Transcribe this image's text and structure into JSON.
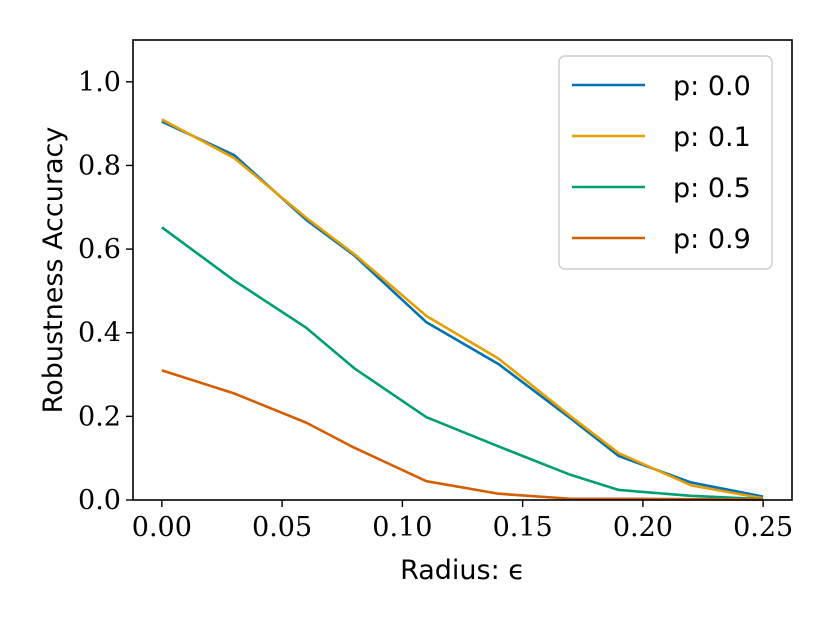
{
  "chart_data": {
    "type": "line",
    "title": "",
    "xlabel": "Radius: ϵ",
    "ylabel": "Robustness Accuracy",
    "xlim": [
      -0.012,
      0.262
    ],
    "ylim": [
      0.0,
      1.1
    ],
    "xticks": [
      0.0,
      0.05,
      0.1,
      0.15,
      0.2,
      0.25
    ],
    "xtick_labels": [
      "0.00",
      "0.05",
      "0.10",
      "0.15",
      "0.20",
      "0.25"
    ],
    "yticks": [
      0.0,
      0.2,
      0.4,
      0.6,
      0.8,
      1.0
    ],
    "ytick_labels": [
      "0.0",
      "0.2",
      "0.4",
      "0.6",
      "0.8",
      "1.0"
    ],
    "grid": false,
    "legend_position": "top-right",
    "x": [
      0.0,
      0.03,
      0.06,
      0.08,
      0.11,
      0.14,
      0.17,
      0.19,
      0.22,
      0.25
    ],
    "series": [
      {
        "name": "p: 0.0",
        "color": "#0072B2",
        "values": [
          0.905,
          0.825,
          0.67,
          0.585,
          0.425,
          0.325,
          0.195,
          0.105,
          0.042,
          0.008
        ]
      },
      {
        "name": "p: 0.1",
        "color": "#E69F00",
        "values": [
          0.91,
          0.818,
          0.675,
          0.588,
          0.44,
          0.338,
          0.2,
          0.112,
          0.035,
          0.004
        ]
      },
      {
        "name": "p: 0.5",
        "color": "#009E73",
        "values": [
          0.652,
          0.525,
          0.412,
          0.315,
          0.198,
          0.128,
          0.06,
          0.024,
          0.01,
          0.002
        ]
      },
      {
        "name": "p: 0.9",
        "color": "#D55E00",
        "values": [
          0.31,
          0.255,
          0.185,
          0.125,
          0.045,
          0.015,
          0.003,
          0.003,
          0.002,
          0.001
        ]
      }
    ]
  }
}
